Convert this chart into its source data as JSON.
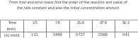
{
  "title_line1": "From trial-and-error basis find the order of the reaction and value of",
  "title_line2": "the rate constant and also the initial concentration amount.",
  "time_label": "Time",
  "time_unit": "(min)",
  "conc_label": "[A] mol/L",
  "time_values": [
    "2.5",
    "7.8",
    "15.6",
    "27.9",
    "56.3"
  ],
  "conc_values": [
    "1.31",
    "0.948",
    "0.727",
    "0.566",
    "0.41"
  ],
  "title_fontsize": 3.5,
  "table_fontsize": 3.5,
  "bg_color": "#ffffff",
  "border_color": "#555555",
  "text_color": "#333333"
}
